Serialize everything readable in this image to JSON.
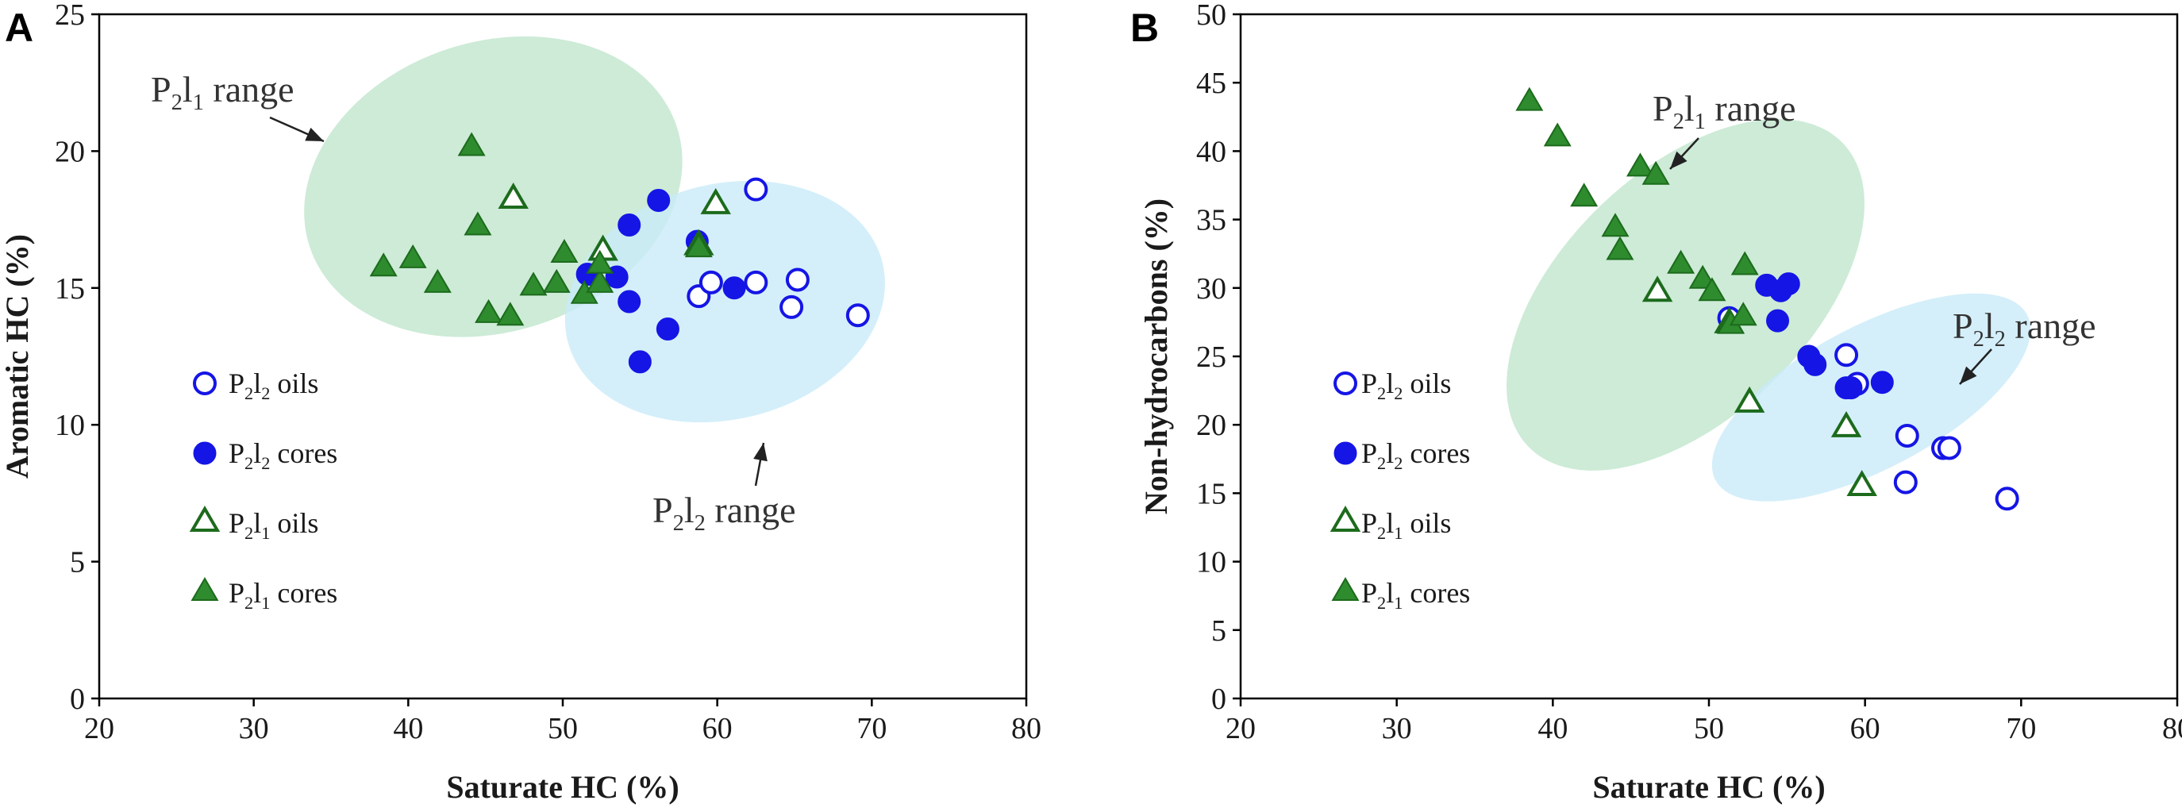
{
  "colors": {
    "blue": "#1515e6",
    "green": "#1c6b1c",
    "green_fill": "#2e8b2e",
    "green_ellipse": "#bfe6cc",
    "blue_ellipse": "#c8ebf8"
  },
  "chart_data": [
    {
      "panel": "A",
      "type": "scatter",
      "xlabel": "Saturate HC (%)",
      "ylabel": "Aromatic HC (%)",
      "xlim": [
        20,
        80
      ],
      "ylim": [
        0,
        25
      ],
      "xticks": [
        "20",
        "30",
        "40",
        "50",
        "60",
        "70",
        "80"
      ],
      "yticks": [
        "0",
        "5",
        "10",
        "15",
        "20",
        "25"
      ],
      "legend": [
        {
          "base": "P",
          "sub1": "2",
          "mid": "l",
          "sub2": "2",
          "text": " oils",
          "key": "p2l2_oils"
        },
        {
          "base": "P",
          "sub1": "2",
          "mid": "l",
          "sub2": "2",
          "text": " cores",
          "key": "p2l2_cores"
        },
        {
          "base": "P",
          "sub1": "2",
          "mid": "l",
          "sub2": "1",
          "text": " oils",
          "key": "p2l1_oils"
        },
        {
          "base": "P",
          "sub1": "2",
          "mid": "l",
          "sub2": "1",
          "text": " cores",
          "key": "p2l1_cores"
        }
      ],
      "ranges": [
        {
          "label": {
            "base": "P",
            "sub1": "2",
            "mid": "l",
            "sub2": "1",
            "text": " range"
          },
          "key": "p2l1",
          "cx": 45.5,
          "cy": 18.7,
          "rx": 12.5,
          "ry": 5.3,
          "rot": -18
        },
        {
          "label": {
            "base": "P",
            "sub1": "2",
            "mid": "l",
            "sub2": "2",
            "text": " range"
          },
          "key": "p2l2",
          "cx": 60.5,
          "cy": 14.5,
          "rx": 10.5,
          "ry": 4.3,
          "rot": -14
        }
      ],
      "series": [
        {
          "name": "p2l2_oils",
          "points": [
            [
              62.5,
              18.6
            ],
            [
              58.8,
              14.7
            ],
            [
              59.6,
              15.2
            ],
            [
              62.5,
              15.2
            ],
            [
              65.2,
              15.3
            ],
            [
              64.8,
              14.3
            ],
            [
              69.1,
              14.0
            ]
          ]
        },
        {
          "name": "p2l2_cores",
          "points": [
            [
              56.2,
              18.2
            ],
            [
              54.3,
              17.3
            ],
            [
              58.7,
              16.7
            ],
            [
              51.6,
              15.5
            ],
            [
              53.5,
              15.4
            ],
            [
              54.3,
              14.5
            ],
            [
              61.1,
              15.0
            ],
            [
              56.8,
              13.5
            ],
            [
              55.0,
              12.3
            ]
          ]
        },
        {
          "name": "p2l1_oils",
          "points": [
            [
              46.8,
              18.3
            ],
            [
              59.9,
              18.1
            ],
            [
              52.6,
              16.4
            ],
            [
              58.8,
              16.6
            ]
          ]
        },
        {
          "name": "p2l1_cores",
          "points": [
            [
              44.1,
              20.2
            ],
            [
              44.5,
              17.3
            ],
            [
              38.4,
              15.8
            ],
            [
              40.3,
              16.1
            ],
            [
              41.9,
              15.2
            ],
            [
              45.2,
              14.1
            ],
            [
              46.6,
              14.0
            ],
            [
              48.1,
              15.1
            ],
            [
              49.6,
              15.2
            ],
            [
              50.1,
              16.3
            ],
            [
              51.4,
              14.8
            ],
            [
              52.4,
              15.2
            ],
            [
              52.4,
              15.9
            ],
            [
              58.8,
              16.5
            ]
          ]
        }
      ]
    },
    {
      "panel": "B",
      "type": "scatter",
      "xlabel": "Saturate HC (%)",
      "ylabel": "Non-hydrocarbons (%)",
      "xlim": [
        20,
        80
      ],
      "ylim": [
        0,
        50
      ],
      "xticks": [
        "20",
        "30",
        "40",
        "50",
        "60",
        "70",
        "80"
      ],
      "yticks": [
        "0",
        "5",
        "10",
        "15",
        "20",
        "25",
        "30",
        "35",
        "40",
        "45",
        "50"
      ],
      "legend": [
        {
          "base": "P",
          "sub1": "2",
          "mid": "l",
          "sub2": "2",
          "text": " oils",
          "key": "p2l2_oils"
        },
        {
          "base": "P",
          "sub1": "2",
          "mid": "l",
          "sub2": "2",
          "text": " cores",
          "key": "p2l2_cores"
        },
        {
          "base": "P",
          "sub1": "2",
          "mid": "l",
          "sub2": "1",
          "text": " oils",
          "key": "p2l1_oils"
        },
        {
          "base": "P",
          "sub1": "2",
          "mid": "l",
          "sub2": "1",
          "text": " cores",
          "key": "p2l1_cores"
        }
      ],
      "ranges": [
        {
          "label": {
            "base": "P",
            "sub1": "2",
            "mid": "l",
            "sub2": "1",
            "text": " range"
          },
          "key": "p2l1",
          "cx": 48.5,
          "cy": 29.5,
          "rx": 14.0,
          "ry": 9.0,
          "rot": -44
        },
        {
          "label": {
            "base": "P",
            "sub1": "2",
            "mid": "l",
            "sub2": "2",
            "text": " range"
          },
          "key": "p2l2",
          "cx": 60.4,
          "cy": 22.0,
          "rx": 11.3,
          "ry": 5.2,
          "rot": -28
        }
      ],
      "series": [
        {
          "name": "p2l2_oils",
          "points": [
            [
              58.8,
              25.1
            ],
            [
              59.5,
              23.0
            ],
            [
              62.7,
              19.2
            ],
            [
              65.0,
              18.3
            ],
            [
              65.4,
              18.3
            ],
            [
              62.6,
              15.8
            ],
            [
              69.1,
              14.6
            ],
            [
              51.3,
              27.8
            ]
          ]
        },
        {
          "name": "p2l2_cores",
          "points": [
            [
              53.7,
              30.2
            ],
            [
              54.6,
              29.8
            ],
            [
              55.1,
              30.3
            ],
            [
              54.4,
              27.6
            ],
            [
              56.4,
              25.0
            ],
            [
              56.8,
              24.4
            ],
            [
              58.8,
              22.7
            ],
            [
              59.1,
              22.7
            ],
            [
              61.1,
              23.1
            ]
          ]
        },
        {
          "name": "p2l1_oils",
          "points": [
            [
              46.7,
              29.8
            ],
            [
              51.3,
              27.5
            ],
            [
              52.6,
              21.7
            ],
            [
              58.8,
              19.9
            ],
            [
              59.8,
              15.6
            ]
          ]
        },
        {
          "name": "p2l1_cores",
          "points": [
            [
              38.5,
              43.7
            ],
            [
              40.3,
              41.1
            ],
            [
              42.0,
              36.7
            ],
            [
              44.0,
              34.5
            ],
            [
              44.3,
              32.8
            ],
            [
              45.6,
              38.9
            ],
            [
              46.6,
              38.3
            ],
            [
              48.2,
              31.8
            ],
            [
              49.6,
              30.7
            ],
            [
              50.2,
              29.8
            ],
            [
              51.4,
              27.4
            ],
            [
              52.2,
              28.0
            ],
            [
              52.3,
              31.7
            ]
          ]
        }
      ]
    }
  ]
}
